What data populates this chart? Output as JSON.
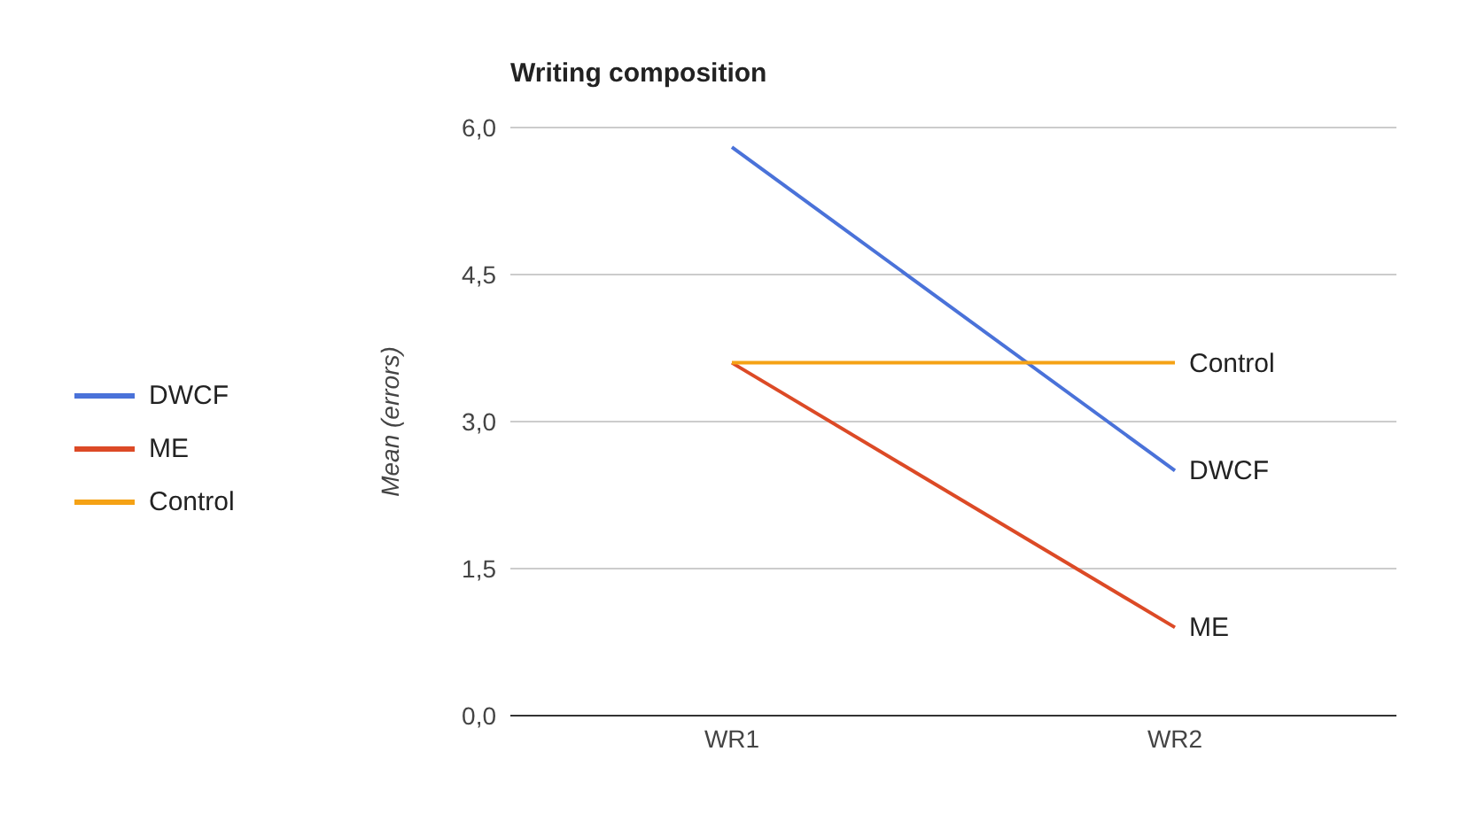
{
  "chart_data": {
    "type": "line",
    "title": "Writing composition",
    "ylabel": "Mean (errors)",
    "categories": [
      "WR1",
      "WR2"
    ],
    "series": [
      {
        "name": "DWCF",
        "color": "#4a72d9",
        "values": [
          5.8,
          2.5
        ]
      },
      {
        "name": "ME",
        "color": "#dc4a26",
        "values": [
          3.6,
          0.9
        ]
      },
      {
        "name": "Control",
        "color": "#f5a215",
        "values": [
          3.6,
          3.6
        ]
      }
    ],
    "ylim": [
      0,
      6
    ],
    "yticks": [
      {
        "value": 0,
        "label": "0,0"
      },
      {
        "value": 1.5,
        "label": "1,5"
      },
      {
        "value": 3,
        "label": "3,0"
      },
      {
        "value": 4.5,
        "label": "4,5"
      },
      {
        "value": 6,
        "label": "6,0"
      }
    ],
    "grid": "y",
    "legend": "left",
    "marker": "none",
    "line_style": "solid"
  }
}
